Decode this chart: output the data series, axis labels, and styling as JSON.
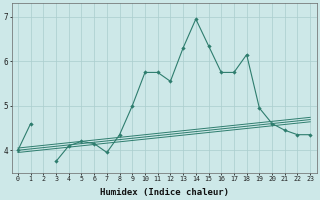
{
  "x": [
    0,
    1,
    2,
    3,
    4,
    5,
    6,
    7,
    8,
    9,
    10,
    11,
    12,
    13,
    14,
    15,
    16,
    17,
    18,
    19,
    20,
    21,
    22,
    23
  ],
  "line_main": [
    4.0,
    4.6,
    null,
    3.75,
    4.1,
    4.2,
    4.15,
    3.95,
    4.35,
    5.0,
    5.75,
    5.75,
    5.55,
    6.3,
    6.95,
    6.35,
    5.75,
    5.75,
    6.15,
    4.95,
    4.6,
    4.45,
    4.35,
    4.35
  ],
  "line_reg1": [
    4.05,
    4.08,
    4.11,
    4.14,
    4.17,
    4.2,
    4.23,
    4.26,
    4.29,
    4.32,
    4.35,
    4.38,
    4.41,
    4.44,
    4.47,
    4.5,
    4.53,
    4.56,
    4.59,
    4.62,
    4.65,
    4.68,
    4.71,
    4.74
  ],
  "line_reg2": [
    4.0,
    4.03,
    4.06,
    4.09,
    4.12,
    4.15,
    4.18,
    4.21,
    4.24,
    4.27,
    4.3,
    4.33,
    4.36,
    4.39,
    4.42,
    4.45,
    4.48,
    4.51,
    4.54,
    4.57,
    4.6,
    4.63,
    4.66,
    4.69
  ],
  "line_reg3": [
    3.95,
    3.98,
    4.01,
    4.04,
    4.07,
    4.1,
    4.13,
    4.16,
    4.19,
    4.22,
    4.25,
    4.28,
    4.31,
    4.34,
    4.37,
    4.4,
    4.43,
    4.46,
    4.49,
    4.52,
    4.55,
    4.58,
    4.61,
    4.64
  ],
  "color": "#2e7d6e",
  "bg_color": "#cde8e8",
  "grid_color": "#aacece",
  "xlabel": "Humidex (Indice chaleur)",
  "ylim": [
    3.5,
    7.3
  ],
  "xlim": [
    -0.5,
    23.5
  ],
  "yticks": [
    4,
    5,
    6,
    7
  ],
  "xticks": [
    0,
    1,
    2,
    3,
    4,
    5,
    6,
    7,
    8,
    9,
    10,
    11,
    12,
    13,
    14,
    15,
    16,
    17,
    18,
    19,
    20,
    21,
    22,
    23
  ]
}
